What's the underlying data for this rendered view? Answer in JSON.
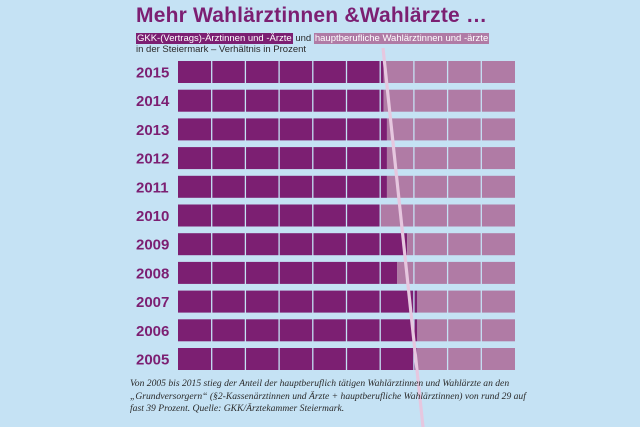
{
  "title": "Mehr Wahlärztinnen &Wahlärzte …",
  "subtitle": {
    "series1_label": "GKK-(Vertrags)-Ärztinnen und -Ärzte",
    "connector": "und",
    "series2_label": "hauptberufliche Wahlärztinnen und -ärzte",
    "line2": "in der Steiermark – Verhältnis in Prozent"
  },
  "caption": "Von 2005 bis 2015 stieg der Anteil der hauptberuflich tätigen Wahlärztinnen und Wahlärzte an den „Grundversorgern“ (§2-Kassenärztinnen und Ärzte + hauptberufliche Wahlärztinnen) von rund 29 auf fast 39 Prozent. Quelle: GKK/Ärztekammer Steiermark.",
  "colors": {
    "background": "#c5e2f4",
    "gkk": "#7c1f72",
    "wahl": "#b07ba5",
    "trend_line": "#e6c7df",
    "year_label": "#7c1f72"
  },
  "chart_data": {
    "type": "bar",
    "orientation": "horizontal",
    "stacked": true,
    "categories": [
      "2015",
      "2014",
      "2013",
      "2012",
      "2011",
      "2010",
      "2009",
      "2008",
      "2007",
      "2006",
      "2005"
    ],
    "series": [
      {
        "name": "GKK-(Vertrags)-Ärztinnen und -Ärzte",
        "values": [
          61,
          61,
          62,
          62,
          62,
          60,
          68,
          65,
          71,
          71,
          71
        ]
      },
      {
        "name": "hauptberufliche Wahlärztinnen und -ärzte",
        "values": [
          39,
          39,
          38,
          38,
          38,
          40,
          32,
          35,
          29,
          29,
          29
        ]
      }
    ],
    "xlim": [
      0,
      100
    ],
    "grid": true,
    "grid_step": 10
  }
}
